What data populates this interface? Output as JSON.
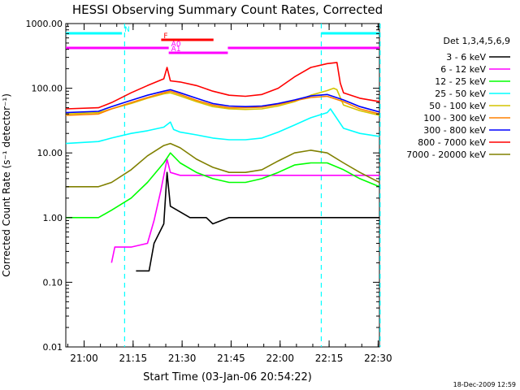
{
  "chart_data": {
    "type": "line",
    "title": "HESSI Observing Summary Count Rates, Corrected",
    "xlabel": "Start Time (03-Jan-06 20:54:22)",
    "ylabel": "Corrected Count Rate (s⁻¹ detector⁻¹)",
    "timestamp": "18-Dec-2009 12:59",
    "x_unit": "minutes after 20:54:22",
    "xlim": [
      0,
      96
    ],
    "ylim": [
      0.01,
      1000
    ],
    "y_scale": "log",
    "x_ticks": [
      {
        "label": "21:00",
        "value": 5.6
      },
      {
        "label": "21:15",
        "value": 20.6
      },
      {
        "label": "21:30",
        "value": 35.6
      },
      {
        "label": "21:45",
        "value": 50.6
      },
      {
        "label": "22:00",
        "value": 65.6
      },
      {
        "label": "22:15",
        "value": 80.6
      },
      {
        "label": "22:30",
        "value": 95.6
      }
    ],
    "y_ticks": [
      {
        "label": "1000.00",
        "value": 1000
      },
      {
        "label": "100.00",
        "value": 100
      },
      {
        "label": "10.00",
        "value": 10
      },
      {
        "label": "1.00",
        "value": 1
      },
      {
        "label": "0.10",
        "value": 0.1
      },
      {
        "label": "0.01",
        "value": 0.01
      }
    ],
    "legend_title": "Det 1,3,4,5,6,9",
    "legend_position": "right",
    "series": [
      {
        "name": "3 - 6 keV",
        "color": "#000000",
        "x": [
          21.5,
          25.5,
          27,
          30,
          31,
          32,
          38,
          43,
          45,
          50,
          55,
          60,
          65,
          70,
          75,
          80,
          85,
          90,
          96
        ],
        "y": [
          0.15,
          0.15,
          0.4,
          0.8,
          5.0,
          1.5,
          1.0,
          1.0,
          0.8,
          1.0,
          1.0,
          1.0,
          1.0,
          1.0,
          1.0,
          1.0,
          1.0,
          1.0,
          1.0
        ]
      },
      {
        "name": "6 - 12 keV",
        "color": "#ff00ff",
        "x": [
          14,
          15,
          20,
          25,
          27,
          29,
          31,
          32,
          35,
          40,
          45,
          50,
          55,
          60,
          65,
          70,
          75,
          80,
          85,
          90,
          96
        ],
        "y": [
          0.2,
          0.35,
          0.35,
          0.4,
          0.9,
          2.5,
          8.0,
          5.0,
          4.5,
          4.5,
          4.5,
          4.5,
          4.5,
          4.5,
          4.5,
          4.5,
          4.5,
          4.5,
          4.5,
          4.5,
          4.5
        ]
      },
      {
        "name": "12 - 25 keV",
        "color": "#00ff00",
        "x": [
          0,
          10,
          14,
          20,
          25,
          30,
          32,
          35,
          40,
          45,
          50,
          55,
          60,
          65,
          70,
          75,
          80,
          85,
          90,
          96
        ],
        "y": [
          1.0,
          1.0,
          1.3,
          2.0,
          3.5,
          7.0,
          10.0,
          7.0,
          5.0,
          4.0,
          3.5,
          3.5,
          4.0,
          5.0,
          6.5,
          7.0,
          7.0,
          5.5,
          4.0,
          3.0
        ]
      },
      {
        "name": "25 - 50 keV",
        "color": "#00ffff",
        "x": [
          0,
          10,
          14,
          20,
          25,
          30,
          32,
          33,
          35,
          40,
          45,
          50,
          55,
          60,
          65,
          70,
          75,
          80,
          81,
          85,
          90,
          96
        ],
        "y": [
          14,
          15,
          17,
          20,
          22,
          25,
          30,
          23,
          21,
          19,
          17,
          16,
          16,
          17,
          21,
          27,
          35,
          42,
          48,
          24,
          20,
          18
        ]
      },
      {
        "name": "50 - 100 keV",
        "color": "#d4c400",
        "x": [
          0,
          10,
          14,
          20,
          25,
          30,
          32,
          35,
          40,
          45,
          50,
          55,
          60,
          65,
          70,
          75,
          80,
          82,
          83,
          85,
          90,
          96
        ],
        "y": [
          40,
          42,
          48,
          58,
          70,
          82,
          85,
          76,
          62,
          52,
          48,
          47,
          48,
          53,
          62,
          78,
          92,
          100,
          95,
          55,
          45,
          38
        ]
      },
      {
        "name": "100 - 300 keV",
        "color": "#ff8000",
        "x": [
          0,
          10,
          14,
          20,
          25,
          30,
          32,
          35,
          40,
          45,
          50,
          55,
          60,
          65,
          70,
          75,
          80,
          85,
          90,
          96
        ],
        "y": [
          38,
          40,
          48,
          60,
          72,
          85,
          90,
          80,
          65,
          55,
          50,
          50,
          51,
          56,
          64,
          72,
          75,
          62,
          48,
          40
        ]
      },
      {
        "name": "300 - 800 keV",
        "color": "#0000ff",
        "x": [
          0,
          10,
          14,
          20,
          25,
          30,
          32,
          35,
          40,
          45,
          50,
          55,
          60,
          65,
          70,
          75,
          80,
          85,
          90,
          96
        ],
        "y": [
          42,
          44,
          52,
          65,
          78,
          90,
          95,
          85,
          70,
          58,
          53,
          52,
          53,
          58,
          66,
          76,
          80,
          66,
          52,
          43
        ]
      },
      {
        "name": "800 - 7000 keV",
        "color": "#ff0000",
        "x": [
          0,
          10,
          14,
          20,
          25,
          30,
          31,
          32,
          35,
          40,
          45,
          50,
          55,
          60,
          65,
          70,
          75,
          80,
          83,
          84,
          85,
          90,
          96
        ],
        "y": [
          48,
          50,
          60,
          85,
          110,
          140,
          210,
          130,
          125,
          110,
          90,
          78,
          75,
          80,
          100,
          150,
          210,
          240,
          250,
          120,
          85,
          70,
          62
        ]
      },
      {
        "name": "7000 - 20000 keV",
        "color": "#808000",
        "x": [
          0,
          10,
          14,
          20,
          25,
          30,
          32,
          35,
          40,
          45,
          50,
          55,
          60,
          65,
          70,
          75,
          80,
          85,
          90,
          96
        ],
        "y": [
          3,
          3,
          3.5,
          5.5,
          9,
          13,
          14,
          12,
          8,
          6,
          5,
          5,
          5.5,
          7.5,
          10,
          11,
          10,
          7,
          5,
          3.5
        ]
      }
    ],
    "vertical_markers": [
      {
        "x": 18.0,
        "color": "#00ffff"
      },
      {
        "x": 78.2,
        "color": "#00ffff"
      },
      {
        "x": 96.2,
        "color": "#00ffff"
      }
    ],
    "flag_bars": [
      {
        "label": "N",
        "color": "#00ffff",
        "x_ranges": [
          [
            0,
            17.2
          ],
          [
            78.2,
            96
          ]
        ],
        "level": 1
      },
      {
        "label": "F",
        "color": "#ff0000",
        "x_ranges": [
          [
            29.2,
            45.2
          ]
        ],
        "level": 2
      },
      {
        "label": "A0",
        "color": "#ff00ff",
        "x_ranges": [
          [
            0,
            31.5
          ],
          [
            49.6,
            96
          ]
        ],
        "level": 3
      },
      {
        "label": "A1",
        "color": "#ff00ff",
        "x_ranges": [
          [
            31.5,
            49.6
          ]
        ],
        "level": 4
      }
    ]
  }
}
